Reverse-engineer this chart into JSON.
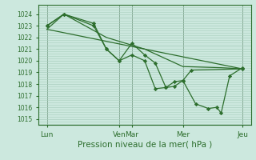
{
  "background_color": "#cce8de",
  "grid_color": "#aacfbf",
  "line_color": "#2d6e2d",
  "vline_color": "#3a5a3a",
  "title": "Pression niveau de la mer( hPa )",
  "ylim": [
    1014.5,
    1024.8
  ],
  "yticks": [
    1015,
    1016,
    1017,
    1018,
    1019,
    1020,
    1021,
    1022,
    1023,
    1024
  ],
  "xlim": [
    0,
    100
  ],
  "xtick_positions": [
    4,
    38,
    44,
    68,
    96
  ],
  "xtick_labels": [
    "Lun",
    "Ven",
    "Mar",
    "Mer",
    "Jeu"
  ],
  "vline_positions": [
    4,
    38,
    44,
    68,
    96
  ],
  "smooth_line": [
    [
      4,
      1022.7
    ],
    [
      96,
      1019.3
    ]
  ],
  "line_with_markers1": [
    [
      4,
      1023.0
    ],
    [
      12,
      1024.0
    ],
    [
      26,
      1023.2
    ],
    [
      32,
      1021.0
    ],
    [
      38,
      1020.0
    ],
    [
      44,
      1021.5
    ],
    [
      50,
      1020.5
    ],
    [
      55,
      1019.8
    ],
    [
      60,
      1017.7
    ],
    [
      64,
      1017.8
    ],
    [
      68,
      1018.3
    ],
    [
      72,
      1019.2
    ],
    [
      96,
      1019.3
    ]
  ],
  "line_with_markers2": [
    [
      4,
      1023.0
    ],
    [
      12,
      1024.0
    ],
    [
      26,
      1023.0
    ],
    [
      32,
      1021.0
    ],
    [
      38,
      1020.0
    ],
    [
      44,
      1020.5
    ],
    [
      50,
      1020.0
    ],
    [
      55,
      1017.6
    ],
    [
      60,
      1017.7
    ],
    [
      64,
      1018.2
    ],
    [
      68,
      1018.3
    ],
    [
      74,
      1016.3
    ],
    [
      80,
      1015.9
    ],
    [
      84,
      1016.0
    ],
    [
      86,
      1015.5
    ],
    [
      90,
      1018.7
    ],
    [
      96,
      1019.4
    ]
  ],
  "smooth_diagonal": [
    [
      4,
      1022.7
    ],
    [
      12,
      1024.0
    ],
    [
      32,
      1022.0
    ],
    [
      50,
      1021.0
    ],
    [
      68,
      1019.5
    ],
    [
      86,
      1019.4
    ],
    [
      96,
      1019.3
    ]
  ]
}
